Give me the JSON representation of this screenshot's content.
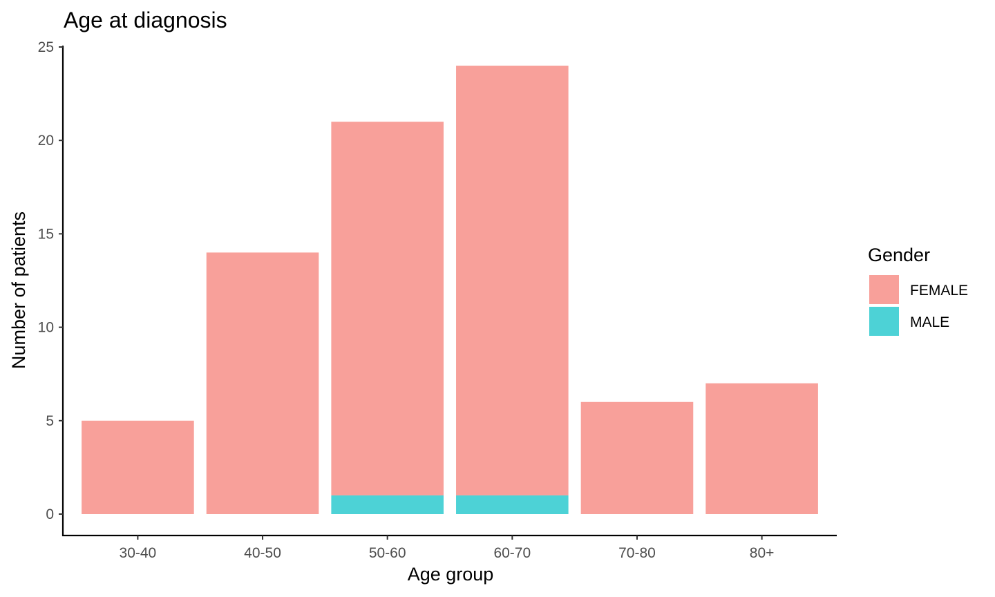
{
  "chart_data": {
    "type": "bar",
    "stacked": true,
    "title": "Age at diagnosis",
    "xlabel": "Age group",
    "ylabel": "Number of patients",
    "categories": [
      "30-40",
      "40-50",
      "50-60",
      "60-70",
      "70-80",
      "80+"
    ],
    "series": [
      {
        "name": "FEMALE",
        "color": "#F8A09A",
        "values": [
          5,
          14,
          20,
          23,
          6,
          7
        ]
      },
      {
        "name": "MALE",
        "color": "#4DD2D6",
        "values": [
          0,
          0,
          1,
          1,
          0,
          0
        ]
      }
    ],
    "ylim": [
      0,
      25
    ],
    "yticks": [
      0,
      5,
      10,
      15,
      20,
      25
    ],
    "grid": false,
    "legend": {
      "title": "Gender",
      "placement": "right"
    }
  }
}
